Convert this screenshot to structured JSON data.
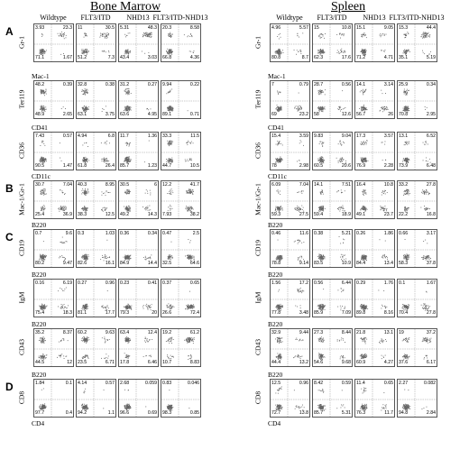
{
  "tissues": [
    "Bone Marrow",
    "Spleen"
  ],
  "genotypes": [
    "Wildtype",
    "FLT3/ITD",
    "NHD13",
    "FLT3/ITD-NHD13"
  ],
  "rows": [
    {
      "section": "A",
      "top_label": "",
      "y_label": "Gr-1",
      "bx_label": "",
      "bm": [
        [
          "3.93",
          "23.3",
          "71.1",
          "1.67"
        ],
        [
          "11",
          "30.5",
          "51.2",
          "7.3"
        ],
        [
          "5.31",
          "48.3",
          "43.4",
          "3.03"
        ],
        [
          "20.3",
          "8.58",
          "66.8",
          "4.36"
        ]
      ],
      "sp": [
        [
          "4.96",
          "5.57",
          "80.8",
          "8.7"
        ],
        [
          "15",
          "10.8",
          "62.3",
          "17.6"
        ],
        [
          "15.1",
          "9.05",
          "71.2",
          "4.71"
        ],
        [
          "15.3",
          "44.4",
          "35.1",
          "5.19"
        ]
      ]
    },
    {
      "section": "",
      "top_label": "Mac-1",
      "y_label": "Ter119",
      "bx_label": "",
      "bm": [
        [
          "48.2",
          "0.39",
          "48.9",
          "2.65"
        ],
        [
          "32.8",
          "0.38",
          "63.1",
          "3.75"
        ],
        [
          "31.2",
          "0.27",
          "63.6",
          "4.95"
        ],
        [
          "9.94",
          "0.22",
          "89.1",
          "0.71"
        ]
      ],
      "sp": [
        [
          "7",
          "0.79",
          "69",
          "23.2"
        ],
        [
          "28.7",
          "0.56",
          "58",
          "12.6"
        ],
        [
          "14.1",
          "3.14",
          "56.7",
          "26"
        ],
        [
          "25.9",
          "0.34",
          "70.8",
          "2.95"
        ]
      ]
    },
    {
      "section": "",
      "top_label": "CD41",
      "y_label": "CD36",
      "bx_label": "",
      "bm": [
        [
          "7.43",
          "0.57",
          "90.5",
          "1.47"
        ],
        [
          "4.94",
          "6.8",
          "61.8",
          "26.4"
        ],
        [
          "11.7",
          "1.36",
          "85.7",
          "1.23"
        ],
        [
          "33.3",
          "11.5",
          "44.7",
          "10.5"
        ]
      ],
      "sp": [
        [
          "15.4",
          "3.59",
          "78",
          "2.98"
        ],
        [
          "9.83",
          "9.04",
          "60.5",
          "20.6"
        ],
        [
          "17.3",
          "3.57",
          "76.9",
          "2.28"
        ],
        [
          "13.1",
          "6.52",
          "73.9",
          "6.48"
        ]
      ]
    },
    {
      "section": "B",
      "top_label": "CD11c",
      "y_label": "Mac-1/Gr-1",
      "bx_label": "",
      "bm": [
        [
          "30.7",
          "7.04",
          "25.4",
          "36.9"
        ],
        [
          "40.3",
          "8.95",
          "38.3",
          "12.5"
        ],
        [
          "30.5",
          "6",
          "49.2",
          "14.3"
        ],
        [
          "12.2",
          "41.7",
          "7.93",
          "38.2"
        ]
      ],
      "sp": [
        [
          "6.09",
          "7.04",
          "59.3",
          "27.5"
        ],
        [
          "14.1",
          "7.51",
          "59.4",
          "18.9"
        ],
        [
          "16.4",
          "10.8",
          "49.1",
          "23.7"
        ],
        [
          "33.2",
          "27.8",
          "22.2",
          "16.8"
        ]
      ]
    },
    {
      "section": "C",
      "top_label": "B220",
      "y_label": "CD19",
      "bx_label": "",
      "bm": [
        [
          "0.7",
          "9.6",
          "80.2",
          "9.47"
        ],
        [
          "0.3",
          "1.03",
          "82.6",
          "16.1"
        ],
        [
          "0.36",
          "0.34",
          "84.9",
          "14.4"
        ],
        [
          "0.47",
          "2.5",
          "32.5",
          "64.6"
        ]
      ],
      "sp": [
        [
          "0.46",
          "11.6",
          "78.8",
          "9.14"
        ],
        [
          "0.38",
          "5.21",
          "83.5",
          "10.9"
        ],
        [
          "0.26",
          "1.86",
          "84.4",
          "13.4"
        ],
        [
          "0.66",
          "3.17",
          "58.3",
          "37.8"
        ]
      ]
    },
    {
      "section": "",
      "top_label": "B220",
      "y_label": "IgM",
      "bx_label": "",
      "bm": [
        [
          "0.16",
          "6.19",
          "75.4",
          "18.3"
        ],
        [
          "0.27",
          "0.96",
          "81.1",
          "17.7"
        ],
        [
          "0.23",
          "0.41",
          "79.3",
          "20"
        ],
        [
          "0.37",
          "0.65",
          "26.6",
          "72.4"
        ]
      ],
      "sp": [
        [
          "1.56",
          "17.2",
          "77.8",
          "3.48"
        ],
        [
          "0.56",
          "6.44",
          "85.9",
          "7.09"
        ],
        [
          "0.29",
          "1.76",
          "89.8",
          "8.16"
        ],
        [
          "0.1",
          "1.67",
          "70.4",
          "27.8"
        ]
      ]
    },
    {
      "section": "",
      "top_label": "B220",
      "y_label": "CD43",
      "bx_label": "",
      "bm": [
        [
          "35.2",
          "8.37",
          "44.5",
          "12"
        ],
        [
          "60.2",
          "9.63",
          "23.5",
          "6.71"
        ],
        [
          "63.4",
          "12.4",
          "17.8",
          "6.46"
        ],
        [
          "19.2",
          "61.2",
          "10.7",
          "8.83"
        ]
      ],
      "sp": [
        [
          "32.9",
          "9.44",
          "44.4",
          "13.2"
        ],
        [
          "27.3",
          "8.44",
          "54.6",
          "9.68"
        ],
        [
          "21.8",
          "13.1",
          "60.9",
          "4.27"
        ],
        [
          "19",
          "37.2",
          "37.6",
          "6.17"
        ]
      ]
    },
    {
      "section": "D",
      "top_label": "B220",
      "y_label": "CD8",
      "bx_label": "CD4",
      "bm": [
        [
          "1.84",
          "0.1",
          "97.7",
          "0.4"
        ],
        [
          "4.14",
          "0.57",
          "94.2",
          "1.1"
        ],
        [
          "2.68",
          "0.059",
          "96.6",
          "0.69"
        ],
        [
          "0.83",
          "0.046",
          "98.3",
          "0.85"
        ]
      ],
      "sp": [
        [
          "12.5",
          "0.96",
          "72.7",
          "13.8"
        ],
        [
          "8.42",
          "0.59",
          "85.7",
          "5.31"
        ],
        [
          "11.4",
          "0.65",
          "76.3",
          "11.7"
        ],
        [
          "2.27",
          "0.082",
          "94.8",
          "2.84"
        ]
      ]
    }
  ]
}
